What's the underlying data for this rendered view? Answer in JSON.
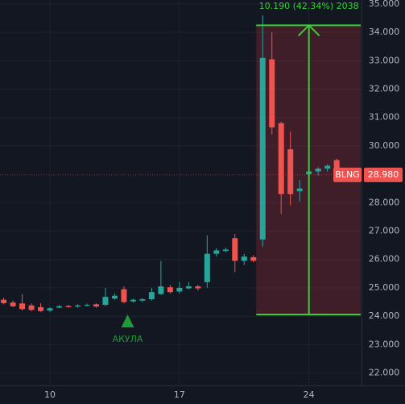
{
  "chart_data": {
    "type": "candlestick",
    "x": [
      7.5,
      8,
      8.5,
      9,
      9.5,
      10,
      10.5,
      11,
      11.5,
      12,
      12.5,
      13,
      13.5,
      14,
      14.5,
      15,
      15.5,
      16,
      16.5,
      17,
      17.5,
      18,
      18.5,
      19,
      19.5,
      20,
      20.5,
      21,
      21.5,
      22,
      22.5,
      23,
      23.5,
      24,
      24.5,
      25,
      25.5
    ],
    "open": [
      24.58,
      24.48,
      24.45,
      24.38,
      24.32,
      24.2,
      24.3,
      24.36,
      24.34,
      24.38,
      24.42,
      24.4,
      24.62,
      24.95,
      24.52,
      24.55,
      24.6,
      24.78,
      25.02,
      24.87,
      24.98,
      25.05,
      25.2,
      26.2,
      26.3,
      26.75,
      25.95,
      26.08,
      26.7,
      33.05,
      30.8,
      29.88,
      28.4,
      29.0,
      29.1,
      29.2,
      29.5
    ],
    "high": [
      24.65,
      24.55,
      24.78,
      24.45,
      24.45,
      24.32,
      24.4,
      24.4,
      24.42,
      24.44,
      24.45,
      25.0,
      24.8,
      25.05,
      24.62,
      24.64,
      25.0,
      25.95,
      25.1,
      25.2,
      25.2,
      25.1,
      26.85,
      26.4,
      26.42,
      26.9,
      26.2,
      26.15,
      34.6,
      34.0,
      30.85,
      30.5,
      28.8,
      30.8,
      29.25,
      29.35,
      29.55
    ],
    "low": [
      24.42,
      24.32,
      24.2,
      24.18,
      24.15,
      24.15,
      24.28,
      24.3,
      24.3,
      24.34,
      24.3,
      24.35,
      24.58,
      24.45,
      24.48,
      24.5,
      24.55,
      24.75,
      24.8,
      24.8,
      24.95,
      24.9,
      25.0,
      26.1,
      26.25,
      25.55,
      25.8,
      25.9,
      26.45,
      30.4,
      27.6,
      27.9,
      28.05,
      28.8,
      28.95,
      29.1,
      28.95
    ],
    "close": [
      24.46,
      24.35,
      24.25,
      24.22,
      24.18,
      24.28,
      24.35,
      24.32,
      24.38,
      24.4,
      24.34,
      24.68,
      24.72,
      24.5,
      24.58,
      24.6,
      24.85,
      25.05,
      24.85,
      25.0,
      25.05,
      24.98,
      26.2,
      26.32,
      26.35,
      25.95,
      26.1,
      25.95,
      33.1,
      30.65,
      28.3,
      28.3,
      28.5,
      29.1,
      29.2,
      29.3,
      28.98
    ],
    "up_color": "#26a69a",
    "down_color": "#ef5350",
    "xlim": [
      7.3,
      26.8
    ],
    "xticks": [
      10,
      17,
      24
    ],
    "ylim": [
      21.56,
      35.14
    ],
    "yticks": [
      {
        "value": 35,
        "label": "35.000"
      },
      {
        "value": 34,
        "label": "34.000"
      },
      {
        "value": 33,
        "label": "33.000"
      },
      {
        "value": 32,
        "label": "32.000"
      },
      {
        "value": 31,
        "label": "31.000"
      },
      {
        "value": 30,
        "label": "30.000"
      },
      {
        "value": 28,
        "label": "28.000"
      },
      {
        "value": 27,
        "label": "27.000"
      },
      {
        "value": 26,
        "label": "26.000"
      },
      {
        "value": 25,
        "label": "25.000"
      },
      {
        "value": 24,
        "label": "24.000"
      },
      {
        "value": 23,
        "label": "23.000"
      },
      {
        "value": 22,
        "label": "22.000"
      }
    ],
    "grid": true,
    "measure": {
      "x": [
        21.15,
        26.8
      ],
      "y": [
        24.06,
        34.25
      ],
      "arrow_x": 24,
      "label": "10.190 (42.34%) 2038",
      "color": "#32d232"
    },
    "marker": {
      "x": 14.2,
      "label": "АКУЛА",
      "color": "#1f9c3a"
    },
    "last_price": {
      "symbol": "BLNG",
      "value": 28.98,
      "label": "28.980",
      "color": "#ef5350"
    }
  }
}
